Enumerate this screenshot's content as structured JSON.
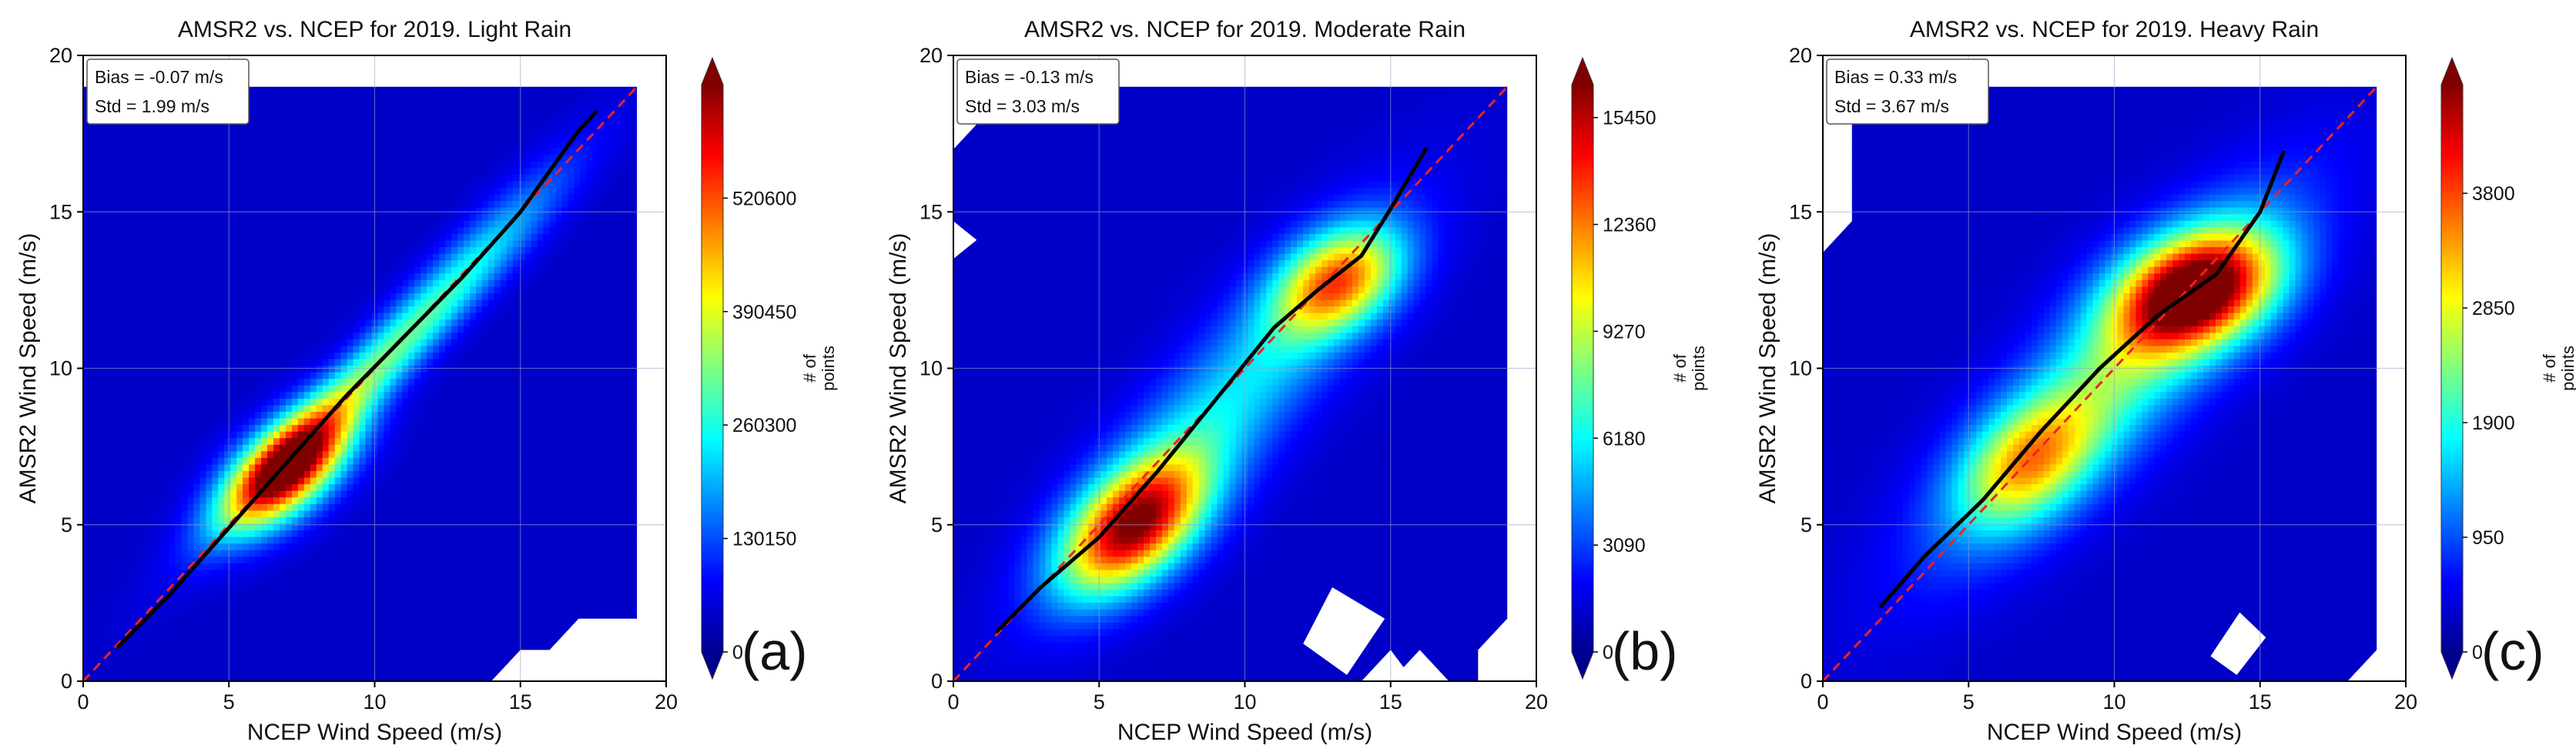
{
  "colors": {
    "one_to_one_line": "#ee2222",
    "fit_line": "#000000",
    "background_field": "#00008f",
    "grid": "#9aa0c8"
  },
  "chart_data": [
    {
      "type": "heatmap",
      "panel_letter": "(a)",
      "title": "AMSR2 vs. NCEP for 2019.  Light Rain",
      "xlabel": "NCEP Wind Speed (m/s)",
      "ylabel": "AMSR2 Wind Speed (m/s)",
      "xlim": [
        0,
        20
      ],
      "ylim": [
        0,
        20
      ],
      "xticks": [
        "0",
        "5",
        "10",
        "15",
        "20"
      ],
      "yticks": [
        "0",
        "5",
        "10",
        "15",
        "20"
      ],
      "grid": true,
      "stats": {
        "bias": "Bias = -0.07 m/s",
        "std": "Std = 1.99 m/s"
      },
      "colorbar": {
        "label": "# of\npoints",
        "ticks": [
          "0",
          "130150",
          "260300",
          "390450",
          "520600"
        ],
        "range": [
          0,
          650750
        ]
      },
      "density_blobs": [
        {
          "cx": 7.0,
          "cy": 6.8,
          "sx": 1.5,
          "sy": 1.3,
          "rho": 0.6,
          "amp": 1.0
        },
        {
          "cx": 10.0,
          "cy": 10.0,
          "sx": 3.3,
          "sy": 3.1,
          "rho": 0.96,
          "amp": 0.42
        },
        {
          "cx": 14.0,
          "cy": 14.2,
          "sx": 2.3,
          "sy": 2.2,
          "rho": 0.9,
          "amp": 0.12
        }
      ],
      "fit_line": [
        [
          1.2,
          1.1
        ],
        [
          3,
          2.8
        ],
        [
          5,
          4.9
        ],
        [
          7,
          7.0
        ],
        [
          9,
          9.1
        ],
        [
          11,
          11.0
        ],
        [
          13,
          12.9
        ],
        [
          15,
          15.0
        ],
        [
          17,
          17.6
        ],
        [
          17.6,
          18.2
        ]
      ],
      "one_to_one": [
        [
          0,
          0
        ],
        [
          19,
          19
        ]
      ],
      "data_region": [
        [
          0,
          0
        ],
        [
          0,
          19
        ],
        [
          19,
          19
        ],
        [
          19,
          2
        ],
        [
          17,
          2
        ],
        [
          16,
          1
        ],
        [
          15,
          1
        ],
        [
          14,
          0
        ]
      ]
    },
    {
      "type": "heatmap",
      "panel_letter": "(b)",
      "title": "AMSR2 vs. NCEP for 2019.  Moderate Rain",
      "xlabel": "NCEP Wind Speed (m/s)",
      "ylabel": "AMSR2 Wind Speed (m/s)",
      "xlim": [
        0,
        20
      ],
      "ylim": [
        0,
        20
      ],
      "xticks": [
        "0",
        "5",
        "10",
        "15",
        "20"
      ],
      "yticks": [
        "0",
        "5",
        "10",
        "15",
        "20"
      ],
      "grid": true,
      "stats": {
        "bias": "Bias = -0.13 m/s",
        "std": "Std = 3.03 m/s"
      },
      "colorbar": {
        "label": "# of\npoints",
        "ticks": [
          "0",
          "3090",
          "6180",
          "9270",
          "12360",
          "15450"
        ],
        "range": [
          0,
          16400
        ]
      },
      "density_blobs": [
        {
          "cx": 6.2,
          "cy": 5.0,
          "sx": 1.7,
          "sy": 1.5,
          "rho": 0.5,
          "amp": 0.88
        },
        {
          "cx": 13.2,
          "cy": 12.8,
          "sx": 1.5,
          "sy": 1.2,
          "rho": 0.35,
          "amp": 0.65
        },
        {
          "cx": 9.5,
          "cy": 9.0,
          "sx": 3.6,
          "sy": 3.7,
          "rho": 0.86,
          "amp": 0.3
        }
      ],
      "fit_line": [
        [
          1.5,
          1.6
        ],
        [
          3,
          3.0
        ],
        [
          5,
          4.6
        ],
        [
          7,
          6.7
        ],
        [
          9,
          9.0
        ],
        [
          11,
          11.3
        ],
        [
          12.5,
          12.5
        ],
        [
          14,
          13.6
        ],
        [
          15,
          15.1
        ],
        [
          16.2,
          17.0
        ]
      ],
      "one_to_one": [
        [
          0,
          0
        ],
        [
          19,
          19
        ]
      ],
      "data_region": [
        [
          0,
          0
        ],
        [
          0,
          13.5
        ],
        [
          0.8,
          14.1
        ],
        [
          0,
          14.7
        ],
        [
          0,
          17
        ],
        [
          1,
          18
        ],
        [
          1,
          19
        ],
        [
          19,
          19
        ],
        [
          19,
          2
        ],
        [
          18,
          1
        ],
        [
          18,
          0
        ],
        [
          15.8,
          0
        ],
        [
          15,
          1
        ],
        [
          14,
          0
        ],
        [
          12.5,
          0
        ],
        [
          11.8,
          1
        ],
        [
          12.5,
          1.5
        ],
        [
          12.5,
          0
        ],
        [
          0,
          0
        ]
      ],
      "holes": [
        [
          [
            12.0,
            1.2
          ],
          [
            13.0,
            3.0
          ],
          [
            14.8,
            2.0
          ],
          [
            13.5,
            0.2
          ]
        ],
        [
          [
            15.0,
            0
          ],
          [
            16.0,
            1.0
          ],
          [
            17.0,
            0
          ]
        ]
      ]
    },
    {
      "type": "heatmap",
      "panel_letter": "(c)",
      "title": "AMSR2 vs. NCEP for 2019.  Heavy Rain",
      "xlabel": "NCEP Wind Speed (m/s)",
      "ylabel": "AMSR2 Wind Speed (m/s)",
      "xlim": [
        0,
        20
      ],
      "ylim": [
        0,
        20
      ],
      "xticks": [
        "0",
        "5",
        "10",
        "15",
        "20"
      ],
      "yticks": [
        "0",
        "5",
        "10",
        "15",
        "20"
      ],
      "grid": true,
      "stats": {
        "bias": "Bias = 0.33 m/s",
        "std": "Std = 3.67 m/s"
      },
      "colorbar": {
        "label": "# of\npoints",
        "ticks": [
          "0",
          "950",
          "1900",
          "2850",
          "3800"
        ],
        "range": [
          0,
          4700
        ]
      },
      "density_blobs": [
        {
          "cx": 12.8,
          "cy": 12.5,
          "sx": 1.9,
          "sy": 1.3,
          "rho": 0.3,
          "amp": 0.95
        },
        {
          "cx": 7.0,
          "cy": 7.0,
          "sx": 1.6,
          "sy": 1.4,
          "rho": 0.4,
          "amp": 0.45
        },
        {
          "cx": 10.0,
          "cy": 9.8,
          "sx": 3.9,
          "sy": 3.7,
          "rho": 0.84,
          "amp": 0.42
        }
      ],
      "fit_line": [
        [
          2,
          2.4
        ],
        [
          3.5,
          4.0
        ],
        [
          5.5,
          5.8
        ],
        [
          7.5,
          8.0
        ],
        [
          9.5,
          10.0
        ],
        [
          11.5,
          11.7
        ],
        [
          13.5,
          13.0
        ],
        [
          15,
          15.0
        ],
        [
          15.8,
          16.9
        ]
      ],
      "one_to_one": [
        [
          0,
          0
        ],
        [
          19,
          19
        ]
      ],
      "data_region": [
        [
          0,
          0
        ],
        [
          0,
          13.7
        ],
        [
          1,
          14.7
        ],
        [
          1,
          19
        ],
        [
          19,
          19
        ],
        [
          19,
          1
        ],
        [
          18,
          0
        ]
      ],
      "holes": [
        [
          [
            13.3,
            0.8
          ],
          [
            14.2,
            0.2
          ],
          [
            15.2,
            1.4
          ],
          [
            14.3,
            2.2
          ]
        ]
      ]
    }
  ]
}
